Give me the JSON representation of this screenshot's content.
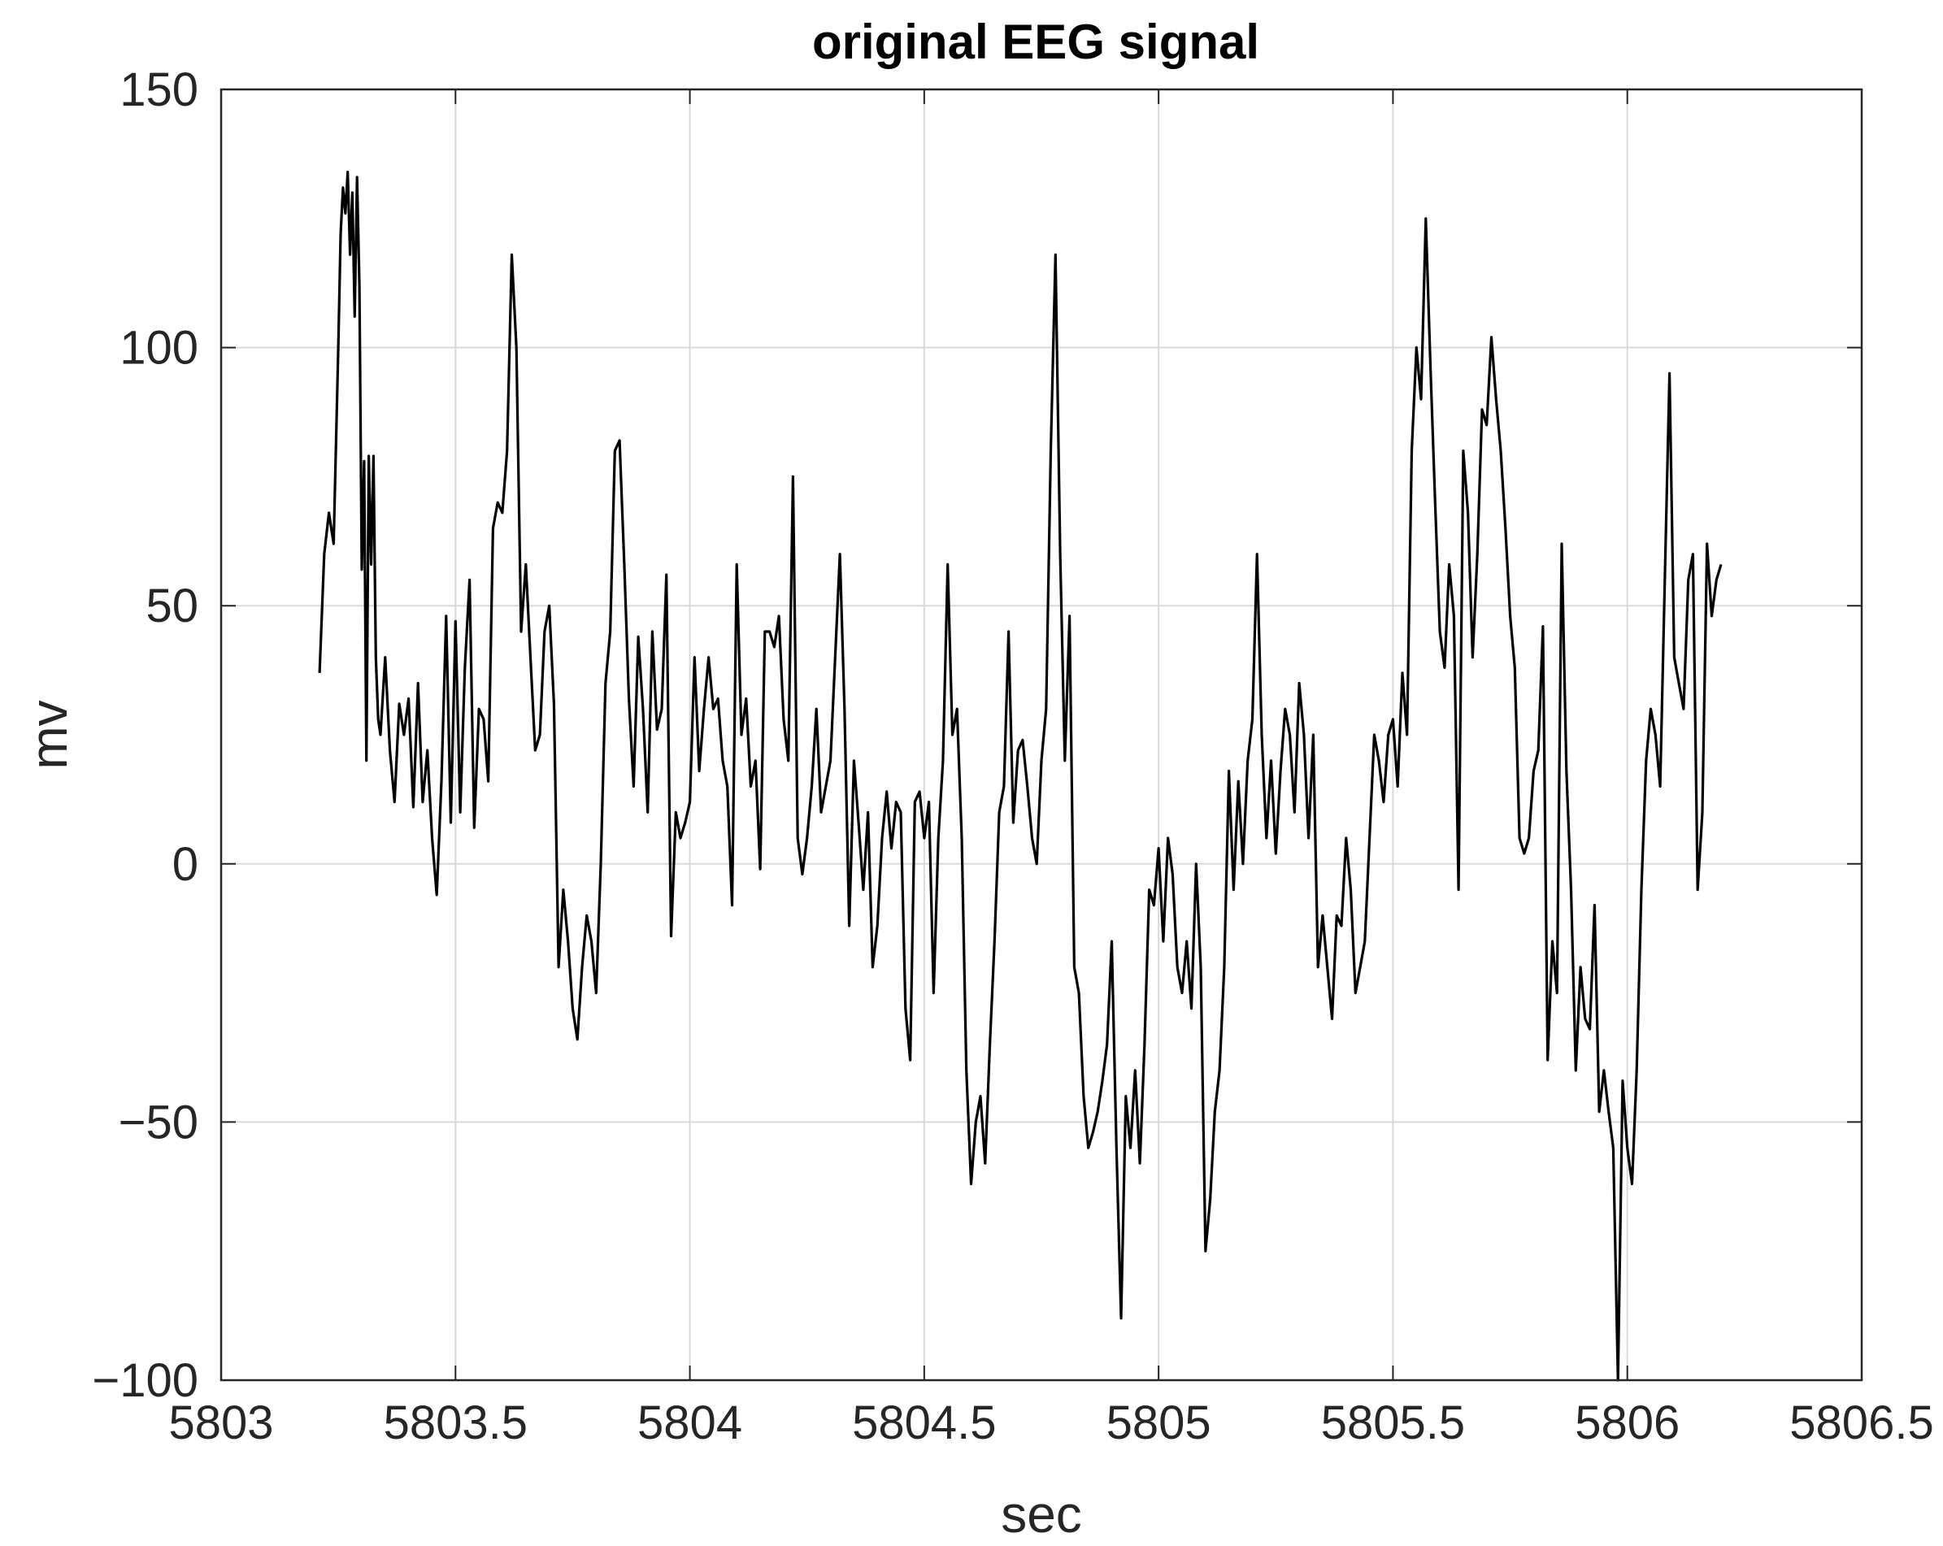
{
  "chart_data": {
    "type": "line",
    "title": "original EEG signal",
    "xlabel": "sec",
    "ylabel": "mv",
    "xlim": [
      5803,
      5806.5
    ],
    "ylim": [
      -100,
      150
    ],
    "xticks": [
      5803,
      5803.5,
      5804,
      5804.5,
      5805,
      5805.5,
      5806,
      5806.5
    ],
    "xtick_labels": [
      "5803",
      "5803.5",
      "5804",
      "5804.5",
      "5805",
      "5805.5",
      "5806",
      "5806.5"
    ],
    "yticks": [
      -100,
      -50,
      0,
      50,
      100,
      150
    ],
    "ytick_labels": [
      "−100",
      "−50",
      "0",
      "50",
      "100",
      "150"
    ],
    "grid": true,
    "line_color": "#000000",
    "grid_color": "#d9d9d9",
    "series": [
      {
        "x": [
          5803.21,
          5803.22,
          5803.23,
          5803.24,
          5803.25,
          5803.255,
          5803.26,
          5803.265,
          5803.27,
          5803.275,
          5803.28,
          5803.285,
          5803.29,
          5803.295,
          5803.3,
          5803.305,
          5803.31,
          5803.315,
          5803.32,
          5803.325,
          5803.33,
          5803.335,
          5803.34,
          5803.35,
          5803.36,
          5803.37,
          5803.38,
          5803.39,
          5803.4,
          5803.41,
          5803.42,
          5803.43,
          5803.44,
          5803.45,
          5803.46,
          5803.47,
          5803.48,
          5803.49,
          5803.5,
          5803.51,
          5803.52,
          5803.53,
          5803.54,
          5803.55,
          5803.56,
          5803.57,
          5803.58,
          5803.59,
          5803.6,
          5803.61,
          5803.62,
          5803.63,
          5803.64,
          5803.65,
          5803.66,
          5803.67,
          5803.68,
          5803.69,
          5803.7,
          5803.71,
          5803.72,
          5803.73,
          5803.74,
          5803.75,
          5803.76,
          5803.77,
          5803.78,
          5803.79,
          5803.8,
          5803.81,
          5803.82,
          5803.83,
          5803.84,
          5803.85,
          5803.86,
          5803.87,
          5803.88,
          5803.89,
          5803.9,
          5803.91,
          5803.92,
          5803.93,
          5803.94,
          5803.95,
          5803.96,
          5803.97,
          5803.98,
          5803.99,
          5804.0,
          5804.01,
          5804.02,
          5804.03,
          5804.04,
          5804.05,
          5804.06,
          5804.07,
          5804.08,
          5804.09,
          5804.1,
          5804.11,
          5804.12,
          5804.13,
          5804.14,
          5804.15,
          5804.16,
          5804.17,
          5804.18,
          5804.19,
          5804.2,
          5804.21,
          5804.22,
          5804.23,
          5804.24,
          5804.25,
          5804.26,
          5804.27,
          5804.28,
          5804.29,
          5804.3,
          5804.31,
          5804.32,
          5804.33,
          5804.34,
          5804.35,
          5804.36,
          5804.37,
          5804.38,
          5804.39,
          5804.4,
          5804.41,
          5804.42,
          5804.43,
          5804.44,
          5804.45,
          5804.46,
          5804.47,
          5804.48,
          5804.49,
          5804.5,
          5804.51,
          5804.52,
          5804.53,
          5804.54,
          5804.55,
          5804.56,
          5804.57,
          5804.58,
          5804.59,
          5804.6,
          5804.61,
          5804.62,
          5804.63,
          5804.64,
          5804.65,
          5804.66,
          5804.67,
          5804.68,
          5804.69,
          5804.7,
          5804.71,
          5804.72,
          5804.73,
          5804.74,
          5804.75,
          5804.76,
          5804.77,
          5804.78,
          5804.79,
          5804.8,
          5804.81,
          5804.82,
          5804.83,
          5804.84,
          5804.85,
          5804.86,
          5804.87,
          5804.88,
          5804.89,
          5804.9,
          5804.91,
          5804.92,
          5804.93,
          5804.94,
          5804.95,
          5804.96,
          5804.97,
          5804.98,
          5804.99,
          5805.0,
          5805.01,
          5805.02,
          5805.03,
          5805.04,
          5805.05,
          5805.06,
          5805.07,
          5805.08,
          5805.09,
          5805.1,
          5805.11,
          5805.12,
          5805.13,
          5805.14,
          5805.15,
          5805.16,
          5805.17,
          5805.18,
          5805.19,
          5805.2,
          5805.21,
          5805.22,
          5805.23,
          5805.24,
          5805.25,
          5805.26,
          5805.27,
          5805.28,
          5805.29,
          5805.3,
          5805.31,
          5805.32,
          5805.33,
          5805.34,
          5805.35,
          5805.36,
          5805.37,
          5805.38,
          5805.39,
          5805.4,
          5805.41,
          5805.42,
          5805.43,
          5805.44,
          5805.45,
          5805.46,
          5805.47,
          5805.48,
          5805.49,
          5805.5,
          5805.51,
          5805.52,
          5805.53,
          5805.54,
          5805.55,
          5805.56,
          5805.57,
          5805.58,
          5805.59,
          5805.6,
          5805.61,
          5805.62,
          5805.63,
          5805.64,
          5805.65,
          5805.66,
          5805.67,
          5805.68,
          5805.69,
          5805.7,
          5805.71,
          5805.72,
          5805.73,
          5805.74,
          5805.75,
          5805.76,
          5805.77,
          5805.78,
          5805.79,
          5805.8,
          5805.81,
          5805.82,
          5805.83,
          5805.84,
          5805.85,
          5805.86,
          5805.87,
          5805.88,
          5805.89,
          5805.9,
          5805.91,
          5805.92,
          5805.93,
          5805.94,
          5805.95,
          5805.96,
          5805.97,
          5805.98,
          5805.99,
          5806.0,
          5806.01,
          5806.02,
          5806.03,
          5806.04,
          5806.05,
          5806.06,
          5806.07,
          5806.08,
          5806.09,
          5806.1,
          5806.11,
          5806.12,
          5806.13,
          5806.14,
          5806.15,
          5806.16,
          5806.17,
          5806.18,
          5806.19,
          5806.2
        ],
        "y": [
          37,
          60,
          68,
          62,
          100,
          122,
          131,
          126,
          134,
          118,
          130,
          106,
          133,
          112,
          57,
          78,
          20,
          79,
          58,
          79,
          40,
          28,
          25,
          40,
          22,
          12,
          31,
          25,
          32,
          11,
          35,
          12,
          22,
          5,
          -6,
          16,
          48,
          8,
          47,
          10,
          38,
          55,
          7,
          30,
          28,
          16,
          65,
          70,
          68,
          80,
          118,
          100,
          45,
          58,
          40,
          22,
          25,
          45,
          50,
          31,
          -20,
          -5,
          -15,
          -28,
          -34,
          -20,
          -10,
          -15,
          -25,
          0,
          35,
          45,
          80,
          82,
          58,
          32,
          15,
          44,
          30,
          10,
          45,
          26,
          30,
          56,
          -14,
          10,
          5,
          8,
          12,
          40,
          18,
          30,
          40,
          30,
          32,
          20,
          15,
          -8,
          58,
          25,
          32,
          15,
          20,
          -1,
          45,
          45,
          42,
          48,
          28,
          20,
          75,
          5,
          -2,
          5,
          15,
          30,
          10,
          15,
          20,
          40,
          60,
          30,
          -12,
          20,
          8,
          -5,
          10,
          -20,
          -12,
          5,
          14,
          3,
          12,
          10,
          -28,
          -38,
          12,
          14,
          5,
          12,
          -25,
          5,
          20,
          58,
          25,
          30,
          5,
          -40,
          -62,
          -50,
          -45,
          -58,
          -35,
          -15,
          10,
          15,
          45,
          8,
          22,
          24,
          15,
          5,
          0,
          20,
          30,
          80,
          118,
          60,
          20,
          48,
          -20,
          -25,
          -45,
          -55,
          -52,
          -48,
          -42,
          -35,
          -15,
          -55,
          -88,
          -45,
          -55,
          -40,
          -58,
          -35,
          -5,
          -8,
          3,
          -15,
          5,
          -2,
          -20,
          -25,
          -15,
          -28,
          0,
          -20,
          -75,
          -65,
          -48,
          -40,
          -20,
          18,
          -5,
          16,
          0,
          20,
          28,
          60,
          25,
          5,
          20,
          2,
          18,
          30,
          25,
          10,
          35,
          25,
          5,
          25,
          -20,
          -10,
          -20,
          -30,
          -10,
          -12,
          5,
          -5,
          -25,
          -20,
          -15,
          5,
          25,
          20,
          12,
          25,
          28,
          15,
          37,
          25,
          80,
          100,
          90,
          125,
          96,
          70,
          45,
          38,
          58,
          48,
          -5,
          80,
          68,
          40,
          60,
          88,
          85,
          102,
          90,
          80,
          65,
          48,
          38,
          5,
          2,
          5,
          18,
          22,
          46,
          -38,
          -15,
          -25,
          62,
          18,
          -5,
          -40,
          -20,
          -30,
          -32,
          -8,
          -48,
          -40,
          -48,
          -55,
          -100,
          -42,
          -55,
          -62,
          -40,
          -5,
          20,
          30,
          25,
          15,
          55,
          95,
          40,
          35,
          30,
          55,
          60,
          -5,
          10,
          62,
          48,
          55,
          58
        ]
      }
    ]
  }
}
